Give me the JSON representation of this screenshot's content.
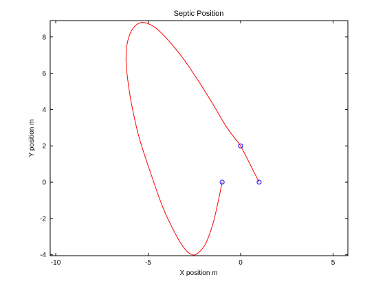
{
  "chart_data": {
    "type": "line",
    "title": "Septic Position",
    "xlabel": "X position m",
    "ylabel": "Y position m",
    "xlim": [
      -10.3,
      5.8
    ],
    "ylim": [
      -4.05,
      8.9
    ],
    "x_ticks": [
      -10,
      -5,
      0,
      5
    ],
    "x_tick_labels": [
      "-10",
      "-5",
      "0",
      "5"
    ],
    "y_ticks": [
      -4,
      -2,
      0,
      2,
      4,
      6,
      8
    ],
    "y_tick_labels": [
      "-4",
      "-2",
      "0",
      "2",
      "4",
      "6",
      "8"
    ],
    "grid": false,
    "series": [
      {
        "color": "#ff0000",
        "x": [
          -1,
          -1.2,
          -1.5,
          -1.9,
          -2.3,
          -2.6,
          -3.0,
          -3.5,
          -4.2,
          -4.9,
          -5.5,
          -5.9,
          -6.1,
          -6.2,
          -6.1,
          -5.8,
          -5.3,
          -4.6,
          -3.9,
          -3.1,
          -2.3,
          -1.5,
          -0.8,
          -0.3,
          0,
          0.5,
          1.0
        ],
        "y": [
          0,
          -1.0,
          -2.3,
          -3.4,
          -3.9,
          -4.0,
          -3.7,
          -2.9,
          -1.4,
          0.6,
          2.5,
          4.3,
          5.6,
          6.8,
          7.8,
          8.5,
          8.8,
          8.5,
          7.8,
          6.8,
          5.6,
          4.3,
          3.1,
          2.4,
          2.0,
          1.0,
          0
        ]
      }
    ],
    "markers": [
      {
        "x": -1,
        "y": 0
      },
      {
        "x": 0,
        "y": 2
      },
      {
        "x": 1,
        "y": 0
      }
    ],
    "marker_color": "#0000ff"
  }
}
